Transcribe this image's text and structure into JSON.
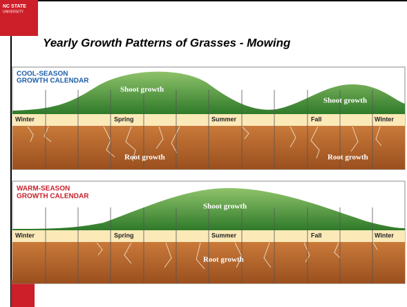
{
  "header": {
    "logo": [
      "NC STATE",
      "UNIVERSITY"
    ],
    "title": "Yearly Growth Patterns of Grasses - Mowing"
  },
  "panels": [
    {
      "heading": [
        "COOL-SEASON",
        "GROWTH CALENDAR"
      ],
      "seasons": [
        "Winter",
        "Spring",
        "Summer",
        "Fall",
        "Winter"
      ],
      "shoot_labels": [
        "Shoot growth",
        "Shoot growth"
      ],
      "root_labels": [
        "Root growth",
        "Root growth"
      ]
    },
    {
      "heading": [
        "WARM-SEASON",
        "GROWTH CALENDAR"
      ],
      "seasons": [
        "Winter",
        "Spring",
        "Summer",
        "Fall",
        "Winter"
      ],
      "shoot_labels": [
        "Shoot growth"
      ],
      "root_labels": [
        "Root growth"
      ]
    }
  ]
}
